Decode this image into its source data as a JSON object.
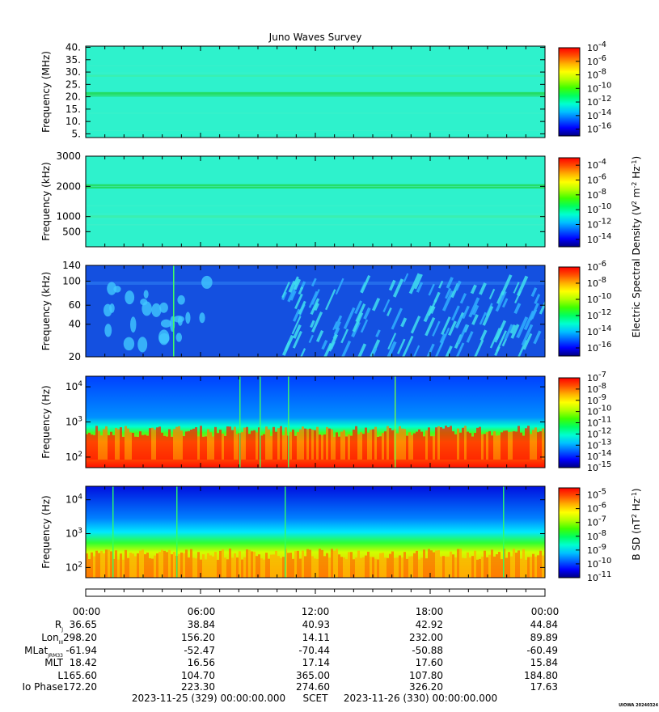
{
  "chart_data": {
    "type": "heatmap",
    "title": "Juno Waves Survey",
    "panels": [
      {
        "ylabel": "Frequency (MHz)",
        "scale": "linear",
        "ylim": [
          3.5,
          40.5
        ],
        "yticks": [
          {
            "value": 5,
            "label": "5."
          },
          {
            "value": 10,
            "label": "10."
          },
          {
            "value": 15,
            "label": "15."
          },
          {
            "value": 20,
            "label": "20."
          },
          {
            "value": 25,
            "label": "25."
          },
          {
            "value": 30,
            "label": "30."
          },
          {
            "value": 35,
            "label": "35."
          },
          {
            "value": 40,
            "label": "40."
          }
        ],
        "colorbar": {
          "scale": "log",
          "range_exp": [
            -17,
            -4
          ],
          "tick_exps": [
            -4,
            -6,
            -8,
            -10,
            -12,
            -14,
            -16
          ]
        },
        "bands": [
          {
            "value": 21,
            "half_width": 0.9
          },
          {
            "value": 28.5,
            "half_width": 0.4
          }
        ]
      },
      {
        "ylabel": "Frequency (kHz)",
        "scale": "linear",
        "ylim": [
          0,
          3000
        ],
        "yticks": [
          {
            "value": 500,
            "label": "500"
          },
          {
            "value": 1000,
            "label": "1000"
          },
          {
            "value": 2000,
            "label": "2000"
          },
          {
            "value": 3000,
            "label": "3000"
          }
        ],
        "colorbar": {
          "scale": "log",
          "range_exp": [
            -15,
            -3
          ],
          "tick_exps": [
            -4,
            -6,
            -8,
            -10,
            -12,
            -14
          ]
        },
        "bands": [
          {
            "value": 2000,
            "half_width": 70
          },
          {
            "value": 1000,
            "half_width": 40
          }
        ]
      },
      {
        "ylabel": "Frequency (kHz)",
        "scale": "log",
        "ylim": [
          20,
          140
        ],
        "yticks": [
          {
            "value": 20,
            "label": "20"
          },
          {
            "value": 40,
            "label": "40"
          },
          {
            "value": 60,
            "label": "60"
          },
          {
            "value": 100,
            "label": "100"
          },
          {
            "value": 140,
            "label": "140"
          }
        ],
        "colorbar": {
          "scale": "log",
          "range_exp": [
            -17,
            -6
          ],
          "tick_exps": [
            -6,
            -8,
            -10,
            -12,
            -14,
            -16
          ]
        }
      },
      {
        "ylabel": "Frequency (Hz)",
        "scale": "log",
        "ylim": [
          50,
          20000
        ],
        "yticks": [
          {
            "value": 100,
            "label": "10",
            "exp": "2"
          },
          {
            "value": 1000,
            "label": "10",
            "exp": "3"
          },
          {
            "value": 10000,
            "label": "10",
            "exp": "4"
          }
        ],
        "colorbar": {
          "scale": "log",
          "range_exp": [
            -15,
            -7
          ],
          "tick_exps": [
            -7,
            -8,
            -9,
            -10,
            -11,
            -12,
            -13,
            -14,
            -15
          ]
        }
      },
      {
        "ylabel": "Frequency (Hz)",
        "scale": "log",
        "ylim": [
          50,
          25000
        ],
        "yticks": [
          {
            "value": 100,
            "label": "10",
            "exp": "2"
          },
          {
            "value": 1000,
            "label": "10",
            "exp": "3"
          },
          {
            "value": 10000,
            "label": "10",
            "exp": "4"
          }
        ],
        "colorbar": {
          "scale": "log",
          "range_exp": [
            -11,
            -4.5
          ],
          "tick_exps": [
            -5,
            -6,
            -7,
            -8,
            -9,
            -10,
            -11
          ]
        }
      }
    ],
    "colorbar_labels": {
      "electric": "Electric Spectral Density (V",
      "bsd": "B SD (nT",
      "electric_parts": [
        "Electric Spectral Density (V",
        "2",
        " m",
        "-2",
        " Hz",
        "-1",
        ")"
      ],
      "bsd_parts": [
        "B SD (nT",
        "2",
        " Hz",
        "-1",
        ")"
      ]
    },
    "x_ticks": [
      "00:00",
      "06:00",
      "12:00",
      "18:00",
      "00:00"
    ],
    "ephemeris": [
      {
        "label": "R",
        "sub": "J",
        "values": [
          "36.65",
          "38.84",
          "40.93",
          "42.92",
          "44.84"
        ]
      },
      {
        "label": "Lon",
        "sub": "III",
        "values": [
          "298.20",
          "156.20",
          "14.11",
          "232.00",
          "89.89"
        ]
      },
      {
        "label": "MLat",
        "sub": "JRM33",
        "values": [
          "-61.94",
          "-52.47",
          "-70.44",
          "-50.88",
          "-60.49"
        ]
      },
      {
        "label": "MLT",
        "sub": "",
        "values": [
          "18.42",
          "16.56",
          "17.14",
          "17.60",
          "15.84"
        ]
      },
      {
        "label": "L",
        "sub": "",
        "values": [
          "165.60",
          "104.70",
          "365.00",
          "107.80",
          "184.80"
        ]
      },
      {
        "label": "Io Phase",
        "sub": "",
        "values": [
          "172.20",
          "223.30",
          "274.60",
          "326.20",
          "17.63"
        ]
      }
    ],
    "footer": {
      "start": "2023-11-25 (329) 00:00:00.000",
      "scet": "SCET",
      "end": "2023-11-26 (330) 00:00:00.000"
    },
    "stamp": "UIOWA 20240324"
  }
}
